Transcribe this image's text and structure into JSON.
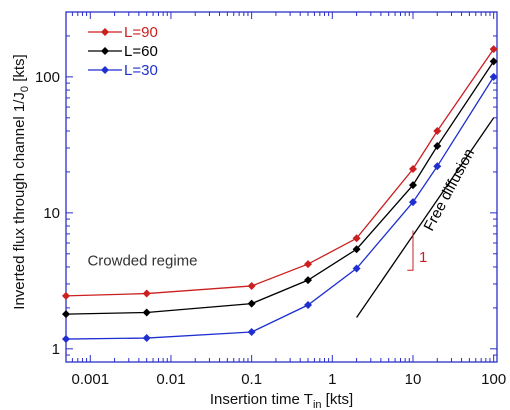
{
  "chart_data": {
    "type": "line",
    "title": "",
    "xlabel": "Insertion time T",
    "xlabel_sub": "in",
    "xlabel_unit": " [kts]",
    "ylabel": "Inverted flux through channel 1/J",
    "ylabel_sub": "0",
    "ylabel_unit": " [kts]",
    "x_scale": "log",
    "y_scale": "log",
    "xlim": [
      0.0005,
      110
    ],
    "ylim": [
      0.8,
      300
    ],
    "xticks": [
      {
        "value": 0.001,
        "label": "0.001"
      },
      {
        "value": 0.01,
        "label": "0.01"
      },
      {
        "value": 0.1,
        "label": "0.1"
      },
      {
        "value": 1,
        "label": "1"
      },
      {
        "value": 10,
        "label": "10"
      },
      {
        "value": 100,
        "label": "100"
      }
    ],
    "yticks": [
      {
        "value": 1,
        "label": "1"
      },
      {
        "value": 10,
        "label": "10"
      },
      {
        "value": 100,
        "label": "100"
      }
    ],
    "grid": false,
    "legend_position": "top-left",
    "x": [
      0.0005,
      0.005,
      0.1,
      0.5,
      2,
      10,
      20,
      100
    ],
    "series": [
      {
        "name": "L=90",
        "color": "#cc1f1f",
        "values": [
          2.45,
          2.55,
          2.9,
          4.2,
          6.5,
          21,
          40,
          160
        ]
      },
      {
        "name": "L=60",
        "color": "#000000",
        "values": [
          1.8,
          1.85,
          2.15,
          3.2,
          5.4,
          16,
          31,
          130
        ]
      },
      {
        "name": "L=30",
        "color": "#1f2fd0",
        "values": [
          1.18,
          1.2,
          1.33,
          2.1,
          3.9,
          12,
          22,
          100
        ]
      }
    ],
    "free_diffusion": {
      "label": "Free diffusion",
      "color": "#000000",
      "x": [
        2,
        100
      ],
      "y": [
        1.7,
        50
      ]
    },
    "slope_triangle": {
      "label": "1",
      "color": "#cc1f1f",
      "x": [
        8.5,
        10
      ],
      "y": [
        7.2,
        8.5
      ]
    },
    "annotation": {
      "text": "Crowded regime",
      "color": "#333333",
      "x": 0.0008,
      "y": 4.1
    },
    "axis_color": "#2b2fc8"
  }
}
